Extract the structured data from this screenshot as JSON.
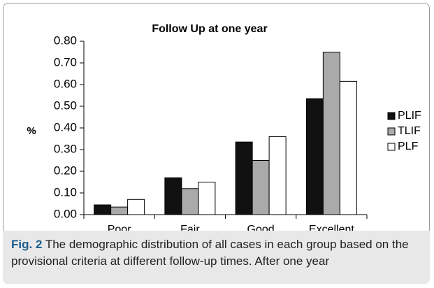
{
  "chart_data": {
    "type": "bar",
    "title": "Follow Up at one year",
    "y_label": "%",
    "categories": [
      "Poor",
      "Fair",
      "Good",
      "Excellent"
    ],
    "series": [
      {
        "name": "PLIF",
        "color": "#111111",
        "values": [
          0.045,
          0.17,
          0.335,
          0.535
        ]
      },
      {
        "name": "TLIF",
        "color": "#aaaaaa",
        "values": [
          0.035,
          0.12,
          0.25,
          0.75
        ]
      },
      {
        "name": "PLF",
        "color": "#ffffff",
        "values": [
          0.07,
          0.15,
          0.36,
          0.615
        ]
      }
    ],
    "ylim": [
      0,
      0.8
    ],
    "yticks": [
      {
        "value": 0,
        "label": "0.00"
      },
      {
        "value": 0.1,
        "label": "0.10"
      },
      {
        "value": 0.2,
        "label": "0.20"
      },
      {
        "value": 0.3,
        "label": "0.30"
      },
      {
        "value": 0.4,
        "label": "0.40"
      },
      {
        "value": 0.5,
        "label": "0.50"
      },
      {
        "value": 0.6,
        "label": "0.60"
      },
      {
        "value": 0.7,
        "label": "0.70"
      },
      {
        "value": 0.8,
        "label": "0.80"
      }
    ],
    "legend": "right"
  },
  "caption": {
    "label": "Fig. 2",
    "text": "The demographic distribution of all cases in each group based on the provisional criteria at different follow-up times. After one year"
  }
}
